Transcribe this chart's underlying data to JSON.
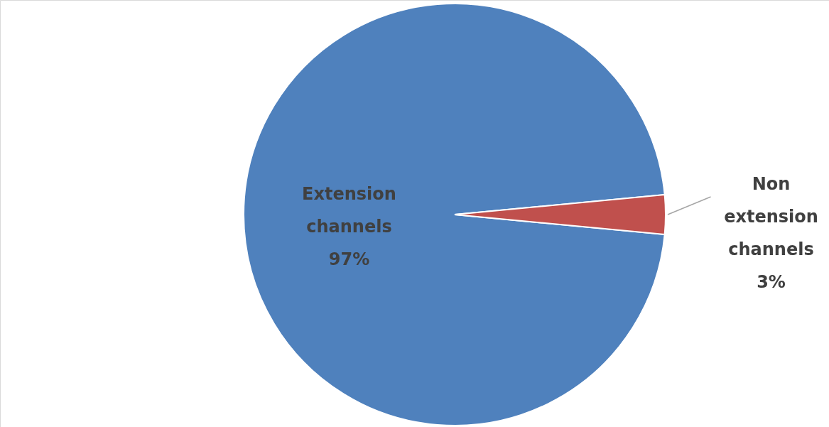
{
  "chart_data": {
    "type": "pie",
    "categories": [
      "Extension channels",
      "Non extension channels"
    ],
    "values": [
      97,
      3
    ],
    "colors": [
      "#4f81bd",
      "#c0504d"
    ],
    "value_labels": [
      "97%",
      "3%"
    ]
  }
}
